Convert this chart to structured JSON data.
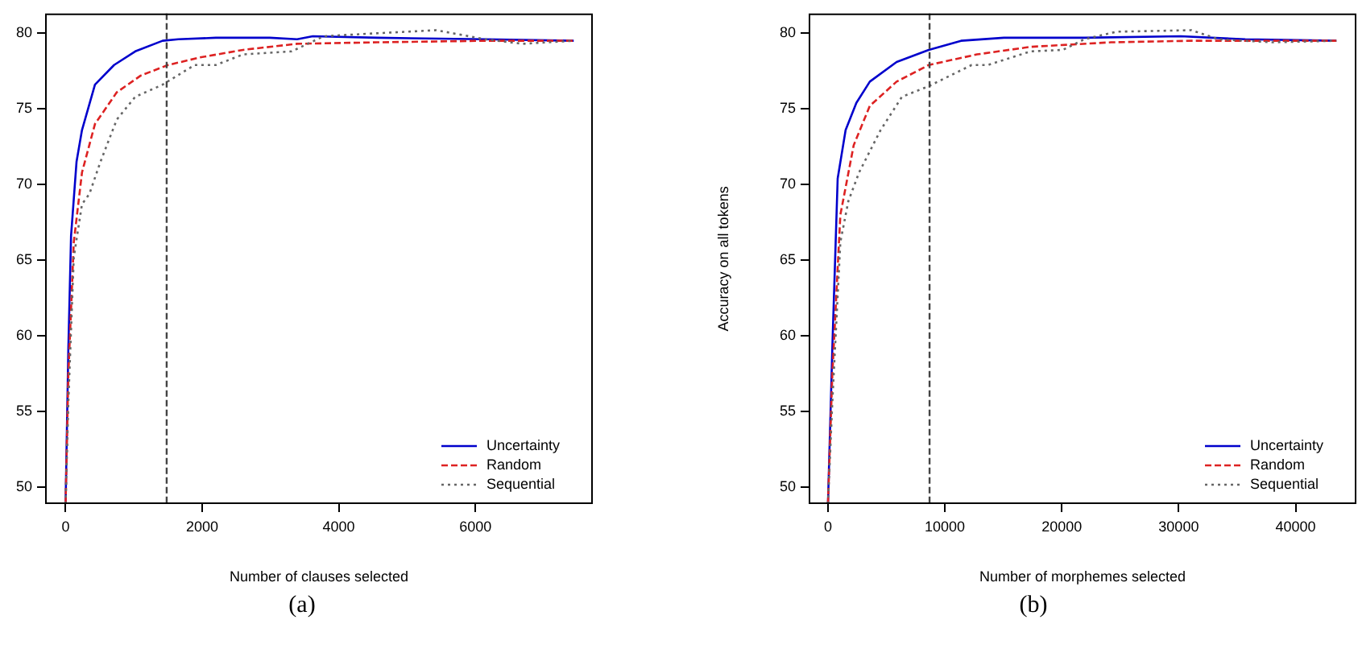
{
  "chart_data": [
    {
      "type": "line",
      "xlabel": "Number of clauses selected",
      "annotations": [
        "(a)"
      ],
      "xlim": [
        -300,
        7720
      ],
      "xticks": [
        0,
        2000,
        4000,
        6000
      ],
      "ylim": [
        48.9,
        81.3
      ],
      "yticks": [
        50,
        55,
        60,
        65,
        70,
        75,
        80
      ],
      "grid": false,
      "legend": "bottom right",
      "marker": "none",
      "ref_lines": [
        {
          "axis": "x",
          "value": 1480,
          "color": "#444444",
          "line_style": "dashed"
        }
      ],
      "series": [
        {
          "name": "Uncertainty",
          "color": "#0000cc",
          "line_style": "solid",
          "x": [
            0,
            40,
            80,
            160,
            240,
            430,
            710,
            1020,
            1420,
            1650,
            2200,
            2990,
            3390,
            3620,
            4570,
            6140,
            7440
          ],
          "values": [
            48.9,
            59.1,
            66.6,
            71.5,
            73.6,
            76.6,
            77.9,
            78.8,
            79.5,
            79.6,
            79.7,
            79.7,
            79.6,
            79.8,
            79.7,
            79.6,
            79.5
          ]
        },
        {
          "name": "Random",
          "color": "#dd2222",
          "line_style": "dashed",
          "x": [
            0,
            40,
            120,
            240,
            430,
            750,
            1100,
            1500,
            1970,
            2600,
            3390,
            4570,
            6140,
            7440
          ],
          "values": [
            48.9,
            57.4,
            66.2,
            70.8,
            74,
            76.1,
            77.2,
            77.9,
            78.4,
            78.9,
            79.3,
            79.4,
            79.5,
            79.5
          ]
        },
        {
          "name": "Sequential",
          "color": "#666666",
          "line_style": "dotted",
          "x": [
            0,
            40,
            120,
            240,
            350,
            510,
            750,
            1020,
            1420,
            1890,
            2200,
            2600,
            3310,
            3780,
            4570,
            5430,
            6140,
            6690,
            7440
          ],
          "values": [
            48.9,
            55.6,
            65.2,
            68.7,
            69.4,
            71.5,
            74.3,
            75.8,
            76.6,
            77.9,
            77.9,
            78.6,
            78.8,
            79.8,
            80,
            80.2,
            79.6,
            79.3,
            79.5
          ]
        }
      ]
    },
    {
      "type": "line",
      "xlabel": "Number of morphemes selected",
      "ylabel": "Accuracy on all tokens",
      "annotations": [
        "(b)"
      ],
      "xlim": [
        -1650,
        45200
      ],
      "xticks": [
        0,
        10000,
        20000,
        30000,
        40000
      ],
      "ylim": [
        48.9,
        81.3
      ],
      "yticks": [
        50,
        55,
        60,
        65,
        70,
        75,
        80
      ],
      "grid": false,
      "legend": "bottom right",
      "marker": "none",
      "ref_lines": [
        {
          "axis": "x",
          "value": 8690,
          "color": "#444444",
          "line_style": "dashed"
        }
      ],
      "series": [
        {
          "name": "Uncertainty",
          "color": "#0000cc",
          "line_style": "solid",
          "x": [
            0,
            370,
            830,
            1510,
            2430,
            3580,
            5870,
            8620,
            11380,
            15050,
            21930,
            30180,
            35690,
            43490
          ],
          "values": [
            48.9,
            59.1,
            70.4,
            73.6,
            75.4,
            76.8,
            78.1,
            78.9,
            79.5,
            79.7,
            79.7,
            79.8,
            79.6,
            79.5
          ]
        },
        {
          "name": "Random",
          "color": "#dd2222",
          "line_style": "dashed",
          "x": [
            0,
            370,
            1060,
            2200,
            3580,
            5870,
            8620,
            12750,
            17340,
            24220,
            31100,
            43490
          ],
          "values": [
            48.9,
            57.4,
            68,
            72.6,
            75.2,
            76.8,
            77.9,
            78.6,
            79.1,
            79.4,
            79.5,
            79.5
          ]
        },
        {
          "name": "Sequential",
          "color": "#666666",
          "line_style": "dotted",
          "x": [
            0,
            370,
            1060,
            1740,
            2660,
            4500,
            6330,
            8620,
            12290,
            13670,
            17340,
            20090,
            21930,
            24680,
            31100,
            33390,
            37980,
            43490
          ],
          "values": [
            48.9,
            55.6,
            66.2,
            68.9,
            70.8,
            73.6,
            75.8,
            76.5,
            77.9,
            77.9,
            78.8,
            78.9,
            79.6,
            80.1,
            80.2,
            79.6,
            79.4,
            79.5
          ]
        }
      ]
    }
  ]
}
